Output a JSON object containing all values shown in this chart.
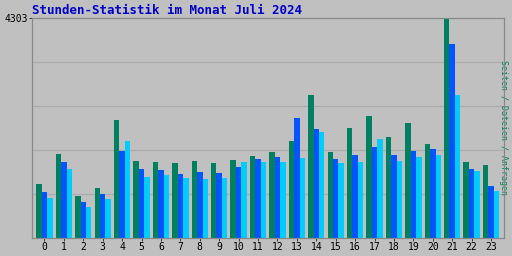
{
  "title": "Stunden-Statistik im Monat Juli 2024",
  "title_color": "#0000cc",
  "background_color": "#c0c0c0",
  "plot_bg_color": "#c0c0c0",
  "ylabel_right": "Seiten / Dateien / Anfragen",
  "ytick_label": "4303",
  "hours": [
    0,
    1,
    2,
    3,
    4,
    5,
    6,
    7,
    8,
    9,
    10,
    11,
    12,
    13,
    14,
    15,
    16,
    17,
    18,
    19,
    20,
    21,
    22,
    23
  ],
  "green_values": [
    1050,
    1650,
    820,
    980,
    2300,
    1500,
    1480,
    1460,
    1500,
    1470,
    1530,
    1600,
    1680,
    1900,
    2800,
    1680,
    2150,
    2380,
    1980,
    2250,
    1830,
    4303,
    1480,
    1430
  ],
  "blue_values": [
    900,
    1480,
    700,
    860,
    1700,
    1350,
    1330,
    1250,
    1290,
    1270,
    1380,
    1550,
    1580,
    2350,
    2140,
    1540,
    1620,
    1780,
    1620,
    1700,
    1740,
    3800,
    1350,
    1020
  ],
  "cyan_values": [
    780,
    1350,
    600,
    760,
    1900,
    1200,
    1230,
    1180,
    1160,
    1170,
    1480,
    1480,
    1490,
    1560,
    2080,
    1460,
    1490,
    1940,
    1510,
    1580,
    1620,
    2800,
    1300,
    920
  ],
  "bar_width": 0.28,
  "green_color": "#008060",
  "blue_color": "#0055ff",
  "cyan_color": "#00ccff",
  "grid_color": "#aaaaaa",
  "ylim_max": 4303,
  "n_gridlines": 4
}
